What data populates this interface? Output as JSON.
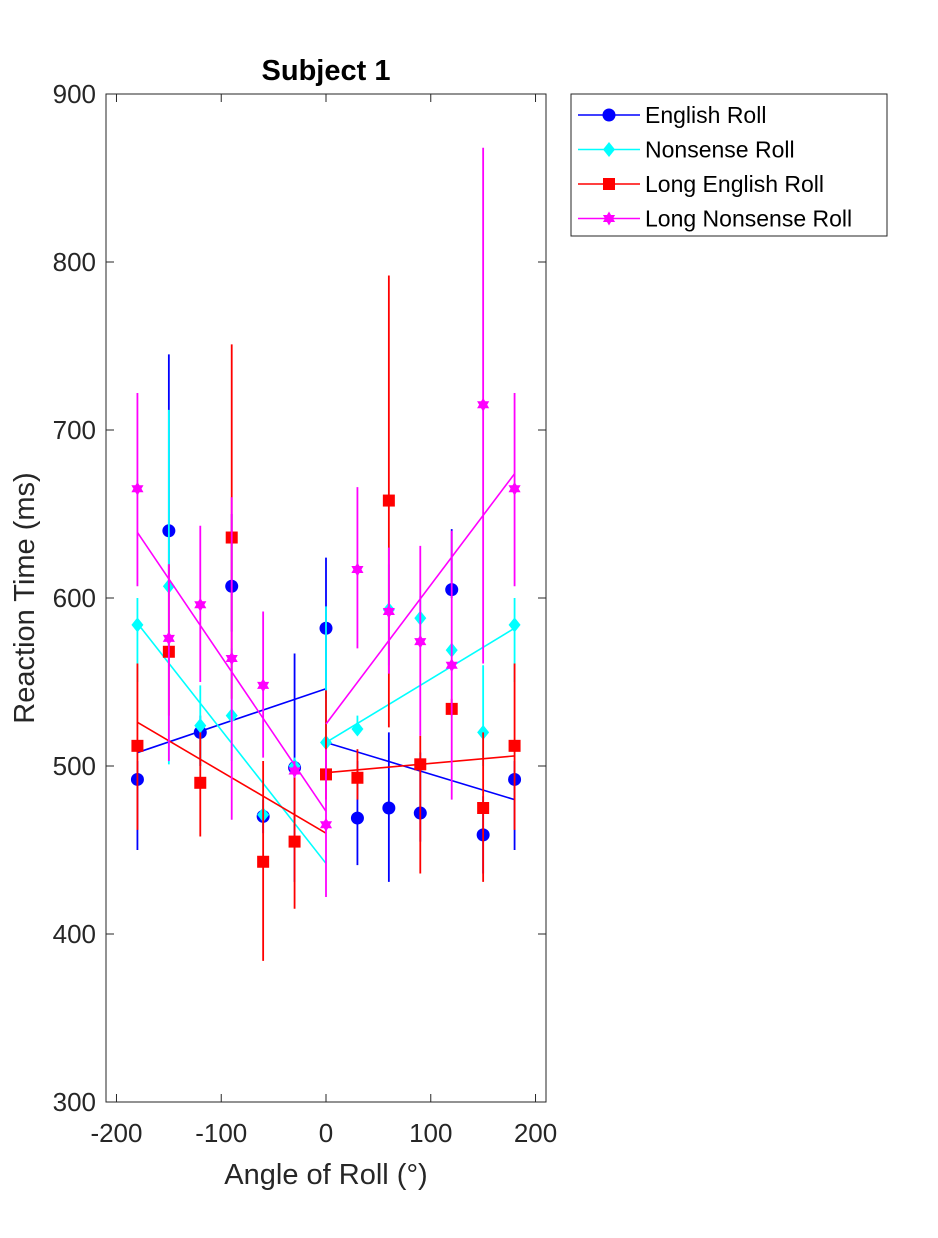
{
  "chart_data": {
    "type": "scatter",
    "title": "Subject 1",
    "xlabel": "Angle of Roll (°)",
    "ylabel": "Reaction Time (ms)",
    "xlim": [
      -210,
      210
    ],
    "ylim": [
      300,
      900
    ],
    "xticks": [
      -200,
      -100,
      0,
      100,
      200
    ],
    "xtick_labels": [
      "-200",
      "-100",
      "0",
      "100",
      "200"
    ],
    "yticks": [
      300,
      400,
      500,
      600,
      700,
      800,
      900
    ],
    "ytick_labels": [
      "300",
      "400",
      "500",
      "600",
      "700",
      "800",
      "900"
    ],
    "grid": false,
    "legend_position": "outside-top-right",
    "x": [
      -180,
      -150,
      -120,
      -90,
      -60,
      -30,
      0,
      30,
      60,
      90,
      120,
      150,
      180
    ],
    "series": [
      {
        "name": "English Roll",
        "color": "#0000ff",
        "marker": "circle",
        "values": [
          492,
          640,
          520,
          607,
          470,
          499,
          582,
          469,
          475,
          472,
          605,
          459,
          492
        ],
        "err_low": [
          450,
          614,
          500,
          580,
          460,
          431,
          540,
          441,
          431,
          455,
          600,
          436,
          450
        ],
        "err_high": [
          503,
          745,
          530,
          650,
          480,
          567,
          624,
          503,
          520,
          508,
          641,
          482,
          503
        ],
        "fits": [
          {
            "x": [
              -180,
              0
            ],
            "y": [
              508,
              546
            ]
          },
          {
            "x": [
              0,
              180
            ],
            "y": [
              514,
              480
            ]
          }
        ]
      },
      {
        "name": "Nonsense Roll",
        "color": "#00ffff",
        "marker": "diamond",
        "values": [
          584,
          607,
          524,
          530,
          471,
          500,
          514,
          522,
          593,
          588,
          569,
          520,
          584
        ],
        "err_low": [
          550,
          501,
          500,
          503,
          465,
          495,
          508,
          520,
          560,
          573,
          566,
          500,
          550
        ],
        "err_high": [
          600,
          712,
          548,
          570,
          480,
          505,
          595,
          530,
          620,
          601,
          573,
          560,
          600
        ],
        "fits": [
          {
            "x": [
              -180,
              0
            ],
            "y": [
              585,
              442
            ]
          },
          {
            "x": [
              0,
              180
            ],
            "y": [
              514,
              582
            ]
          }
        ]
      },
      {
        "name": "Long English Roll",
        "color": "#ff0000",
        "marker": "square",
        "values": [
          512,
          568,
          490,
          636,
          443,
          455,
          495,
          493,
          658,
          501,
          534,
          475,
          512
        ],
        "err_low": [
          462,
          530,
          458,
          540,
          384,
          415,
          480,
          480,
          523,
          436,
          530,
          431,
          462
        ],
        "err_high": [
          561,
          620,
          520,
          751,
          503,
          497,
          545,
          510,
          792,
          518,
          540,
          520,
          561
        ],
        "fits": [
          {
            "x": [
              -180,
              0
            ],
            "y": [
              526,
              460
            ]
          },
          {
            "x": [
              0,
              180
            ],
            "y": [
              496,
              506
            ]
          }
        ]
      },
      {
        "name": "Long Nonsense Roll",
        "color": "#ff00ff",
        "marker": "hexagram",
        "values": [
          665,
          576,
          596,
          564,
          548,
          497,
          465,
          617,
          592,
          574,
          560,
          715,
          665
        ],
        "err_low": [
          607,
          503,
          550,
          468,
          505,
          493,
          422,
          570,
          555,
          518,
          480,
          561,
          607
        ],
        "err_high": [
          722,
          620,
          643,
          660,
          592,
          503,
          510,
          666,
          630,
          631,
          640,
          868,
          722
        ],
        "fits": [
          {
            "x": [
              -180,
              0
            ],
            "y": [
              639,
              473
            ]
          },
          {
            "x": [
              0,
              180
            ],
            "y": [
              525,
              674
            ]
          }
        ]
      }
    ]
  }
}
